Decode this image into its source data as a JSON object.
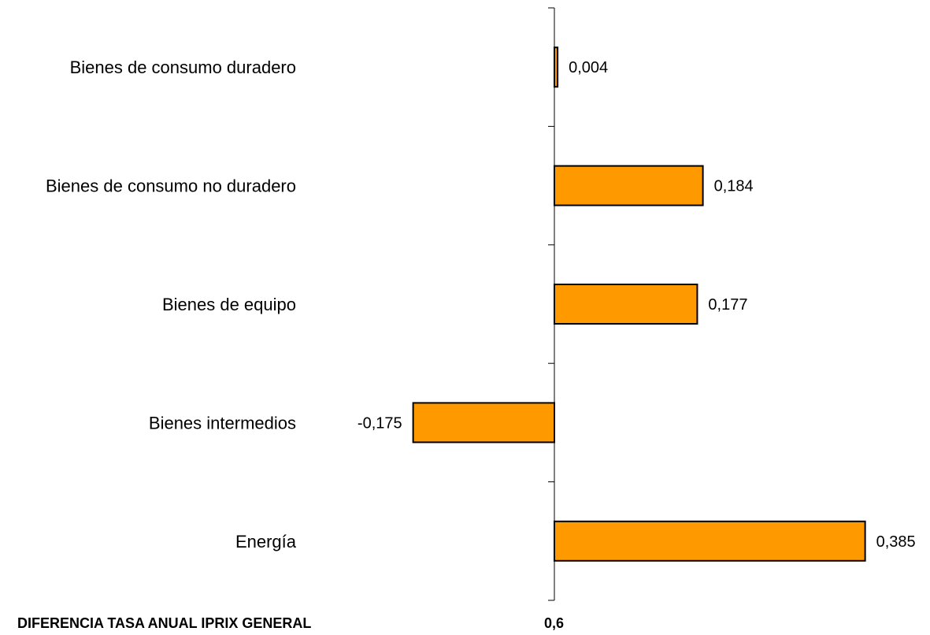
{
  "chart_data": {
    "type": "bar",
    "orientation": "horizontal",
    "categories": [
      "Bienes de consumo duradero",
      "Bienes de consumo no duradero",
      "Bienes de equipo",
      "Bienes intermedios",
      "Energía"
    ],
    "values": [
      0.004,
      0.184,
      0.177,
      -0.175,
      0.385
    ],
    "value_labels": [
      "0,004",
      "0,184",
      "0,177",
      "-0,175",
      "0,385"
    ],
    "bar_color": "#FF9900",
    "bar_border_color": "#000000",
    "grid": false,
    "legend": "none"
  },
  "footer": {
    "label": "DIFERENCIA TASA ANUAL IPRIX GENERAL",
    "value": "0,6"
  }
}
